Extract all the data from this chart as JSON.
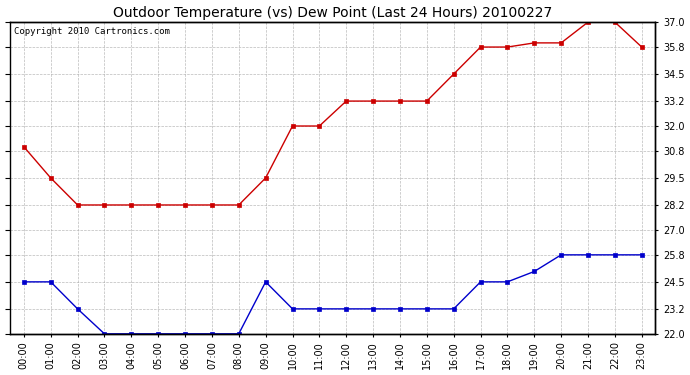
{
  "title": "Outdoor Temperature (vs) Dew Point (Last 24 Hours) 20100227",
  "copyright": "Copyright 2010 Cartronics.com",
  "x_labels": [
    "00:00",
    "01:00",
    "02:00",
    "03:00",
    "04:00",
    "05:00",
    "06:00",
    "07:00",
    "08:00",
    "09:00",
    "10:00",
    "11:00",
    "12:00",
    "13:00",
    "14:00",
    "15:00",
    "16:00",
    "17:00",
    "18:00",
    "19:00",
    "20:00",
    "21:00",
    "22:00",
    "23:00"
  ],
  "temp_values": [
    31.0,
    29.5,
    28.2,
    28.2,
    28.2,
    28.2,
    28.2,
    28.2,
    28.2,
    29.5,
    32.0,
    32.0,
    33.2,
    33.2,
    33.2,
    33.2,
    34.5,
    35.8,
    35.8,
    36.0,
    36.0,
    37.0,
    37.0,
    35.8
  ],
  "dew_values": [
    24.5,
    24.5,
    23.2,
    22.0,
    22.0,
    22.0,
    22.0,
    22.0,
    22.0,
    24.5,
    23.2,
    23.2,
    23.2,
    23.2,
    23.2,
    23.2,
    23.2,
    24.5,
    24.5,
    25.0,
    25.8,
    25.8,
    25.8,
    25.8
  ],
  "temp_color": "#cc0000",
  "dew_color": "#0000cc",
  "bg_color": "#ffffff",
  "grid_color": "#aaaaaa",
  "y_min": 22.0,
  "y_max": 37.0,
  "y_ticks": [
    22.0,
    23.2,
    24.5,
    25.8,
    27.0,
    28.2,
    29.5,
    30.8,
    32.0,
    33.2,
    34.5,
    35.8,
    37.0
  ],
  "title_fontsize": 10,
  "copyright_fontsize": 6.5,
  "tick_fontsize": 7
}
